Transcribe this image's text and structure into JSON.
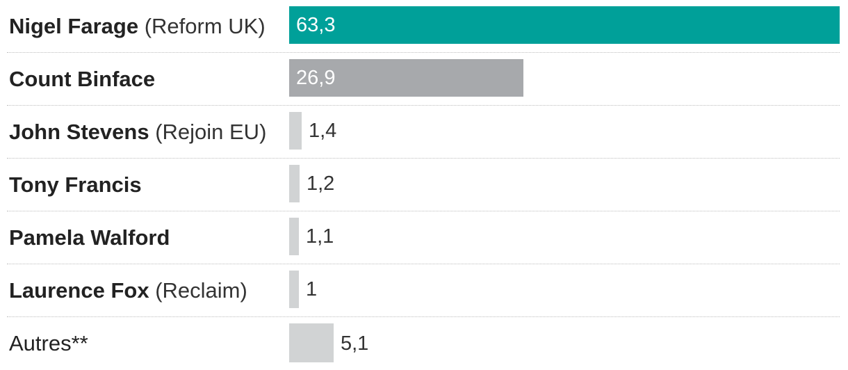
{
  "chart_data": {
    "type": "bar",
    "orientation": "horizontal",
    "categories": [
      "Nigel Farage (Reform UK)",
      "Count Binface",
      "John Stevens (Rejoin EU)",
      "Tony Francis",
      "Pamela Walford",
      "Laurence Fox (Reclaim)",
      "Autres**"
    ],
    "rows": [
      {
        "name": "Nigel Farage",
        "party": "(Reform UK)",
        "value": 63.3,
        "value_label": "63,3",
        "color": "#00a099",
        "bold": true
      },
      {
        "name": "Count Binface",
        "party": "",
        "value": 26.9,
        "value_label": "26,9",
        "color": "#a7a9ac",
        "bold": true
      },
      {
        "name": "John Stevens",
        "party": "(Rejoin EU)",
        "value": 1.4,
        "value_label": "1,4",
        "color": "#d1d3d4",
        "bold": true
      },
      {
        "name": "Tony Francis",
        "party": "",
        "value": 1.2,
        "value_label": "1,2",
        "color": "#d1d3d4",
        "bold": true
      },
      {
        "name": "Pamela Walford",
        "party": "",
        "value": 1.1,
        "value_label": "1,1",
        "color": "#d1d3d4",
        "bold": true
      },
      {
        "name": "Laurence Fox",
        "party": "(Reclaim)",
        "value": 1,
        "value_label": "1",
        "color": "#d1d3d4",
        "bold": true
      },
      {
        "name": "Autres**",
        "party": "",
        "value": 5.1,
        "value_label": "5,1",
        "color": "#d1d3d4",
        "bold": false
      }
    ],
    "values": [
      63.3,
      26.9,
      1.4,
      1.2,
      1.1,
      1,
      5.1
    ],
    "xlim": [
      0,
      63.3
    ],
    "grid": false,
    "legend": "none"
  }
}
